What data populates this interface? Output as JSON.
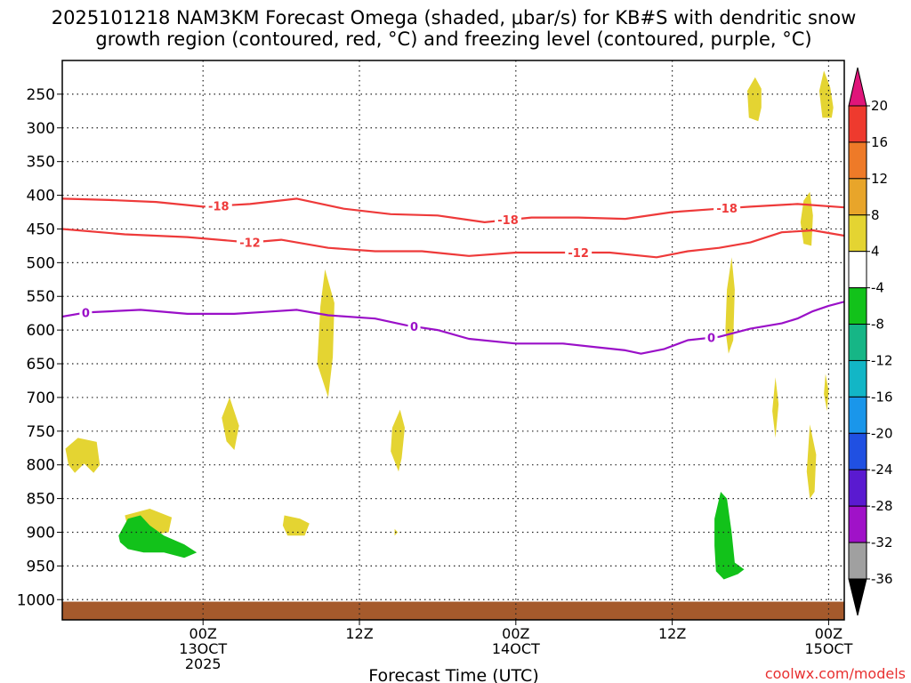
{
  "chart_data": {
    "type": "time-height cross section",
    "title_line1": "2025101218 NAM3KM Forecast Omega (shaded, μbar/s) for KB#S with dendritic snow",
    "title_line2": "growth region (contoured, red, °C) and freezing level (contoured, purple, °C)",
    "xlabel": "Forecast Time (UTC)",
    "credit": "coolwx.com/models",
    "x_axis": {
      "unit": "hours after 2025101218",
      "range": [
        -3,
        47
      ],
      "ticks": [
        {
          "hour": 6,
          "lines": [
            "00Z",
            "13OCT",
            "2025"
          ]
        },
        {
          "hour": 16,
          "lines": [
            "12Z"
          ]
        },
        {
          "hour": 26,
          "lines": [
            "00Z",
            "14OCT"
          ]
        },
        {
          "hour": 36,
          "lines": [
            "12Z"
          ]
        },
        {
          "hour": 46,
          "lines": [
            "00Z",
            "15OCT"
          ]
        }
      ]
    },
    "y_axis": {
      "unit": "hPa",
      "range": [
        200,
        1030
      ],
      "ticks": [
        250,
        300,
        350,
        400,
        450,
        500,
        550,
        600,
        650,
        700,
        750,
        800,
        850,
        900,
        950,
        1000
      ]
    },
    "colorbar": {
      "labels": [
        "20",
        "16",
        "12",
        "8",
        "4",
        "-4",
        "-8",
        "-12",
        "-16",
        "-20",
        "-24",
        "-28",
        "-32",
        "-36"
      ],
      "bins": [
        {
          "min": 20,
          "max": null,
          "color": "#e0157a"
        },
        {
          "min": 16,
          "max": 20,
          "color": "#ee3a2e"
        },
        {
          "min": 12,
          "max": 16,
          "color": "#ee7a28"
        },
        {
          "min": 8,
          "max": 12,
          "color": "#e8a52a"
        },
        {
          "min": 4,
          "max": 8,
          "color": "#e4d432"
        },
        {
          "min": -4,
          "max": 4,
          "color": "#ffffff"
        },
        {
          "min": -8,
          "max": -4,
          "color": "#12c21a"
        },
        {
          "min": -12,
          "max": -8,
          "color": "#16b686"
        },
        {
          "min": -16,
          "max": -12,
          "color": "#12b6c6"
        },
        {
          "min": -20,
          "max": -16,
          "color": "#1a96ea"
        },
        {
          "min": -24,
          "max": -20,
          "color": "#2050e2"
        },
        {
          "min": -28,
          "max": -24,
          "color": "#5a1ad0"
        },
        {
          "min": -32,
          "max": -28,
          "color": "#a012c8"
        },
        {
          "min": -36,
          "max": -32,
          "color": "#a0a0a0"
        },
        {
          "min": null,
          "max": -36,
          "color": "#000000"
        }
      ]
    },
    "contours": [
      {
        "name": "minus-18-isotherm",
        "label": "-18",
        "color": "#ee3a3a",
        "labels_at": [
          7,
          25.5,
          39.5
        ],
        "points": [
          [
            -3,
            405
          ],
          [
            0,
            407
          ],
          [
            3,
            410
          ],
          [
            6,
            417
          ],
          [
            9,
            413
          ],
          [
            12,
            405
          ],
          [
            15,
            420
          ],
          [
            18,
            428
          ],
          [
            21,
            430
          ],
          [
            24,
            440
          ],
          [
            27,
            433
          ],
          [
            30,
            433
          ],
          [
            33,
            435
          ],
          [
            36,
            425
          ],
          [
            39,
            420
          ],
          [
            41,
            417
          ],
          [
            44,
            413
          ],
          [
            47,
            418
          ]
        ]
      },
      {
        "name": "minus-12-isotherm",
        "label": "-12",
        "color": "#ee3a3a",
        "labels_at": [
          9,
          30
        ],
        "points": [
          [
            -3,
            450
          ],
          [
            1,
            458
          ],
          [
            5,
            462
          ],
          [
            9,
            470
          ],
          [
            11,
            466
          ],
          [
            14,
            478
          ],
          [
            17,
            483
          ],
          [
            20,
            483
          ],
          [
            23,
            490
          ],
          [
            26,
            485
          ],
          [
            29,
            485
          ],
          [
            32,
            485
          ],
          [
            35,
            492
          ],
          [
            37,
            483
          ],
          [
            39,
            478
          ],
          [
            41,
            470
          ],
          [
            43,
            455
          ],
          [
            45,
            452
          ],
          [
            47,
            460
          ]
        ]
      },
      {
        "name": "freezing-level",
        "label": "0",
        "color": "#9a10c8",
        "labels_at": [
          -1.5,
          19.5,
          38.5
        ],
        "points": [
          [
            -3,
            580
          ],
          [
            -1.5,
            574
          ],
          [
            2,
            570
          ],
          [
            5,
            576
          ],
          [
            8,
            576
          ],
          [
            10,
            573
          ],
          [
            12,
            570
          ],
          [
            14,
            578
          ],
          [
            17,
            583
          ],
          [
            19,
            593
          ],
          [
            21,
            600
          ],
          [
            23,
            613
          ],
          [
            26,
            620
          ],
          [
            29,
            620
          ],
          [
            31,
            625
          ],
          [
            33,
            630
          ],
          [
            34,
            635
          ],
          [
            35.5,
            628
          ],
          [
            37,
            615
          ],
          [
            39,
            610
          ],
          [
            41,
            598
          ],
          [
            43,
            590
          ],
          [
            44,
            583
          ],
          [
            45,
            572
          ],
          [
            46,
            564
          ],
          [
            47,
            558
          ]
        ]
      }
    ],
    "shaded_regions": [
      {
        "name": "rising-motion-3.8h-860hPa",
        "omega_range": "4 to 8",
        "color": "#e4d432",
        "points": [
          [
            -2.8,
            776
          ],
          [
            -2,
            760
          ],
          [
            -0.8,
            766
          ],
          [
            -0.6,
            800
          ],
          [
            -1,
            812
          ],
          [
            -1.6,
            798
          ],
          [
            -2.2,
            812
          ],
          [
            -2.6,
            800
          ]
        ]
      },
      {
        "name": "rising-motion-4.5h-880hPa",
        "omega_range": "4 to 8",
        "color": "#e4d432",
        "points": [
          [
            1,
            875
          ],
          [
            2.6,
            865
          ],
          [
            4,
            878
          ],
          [
            3.8,
            900
          ],
          [
            2.5,
            905
          ],
          [
            1.2,
            893
          ]
        ]
      },
      {
        "name": "rising-motion-5h-735hPa",
        "omega_range": "4 to 8",
        "color": "#e4d432",
        "points": [
          [
            7.7,
            700
          ],
          [
            8.3,
            742
          ],
          [
            8,
            778
          ],
          [
            7.5,
            765
          ],
          [
            7.2,
            730
          ]
        ]
      },
      {
        "name": "rising-motion-11.5h-885hPa",
        "omega_range": "4 to 8",
        "color": "#e4d432",
        "points": [
          [
            11.2,
            875
          ],
          [
            12.2,
            880
          ],
          [
            12.8,
            887
          ],
          [
            12.5,
            905
          ],
          [
            11.4,
            905
          ],
          [
            11.1,
            890
          ]
        ]
      },
      {
        "name": "rising-motion-11.8h-620hPa",
        "omega_range": "4 to 8",
        "color": "#e4d432",
        "points": [
          [
            13.8,
            510
          ],
          [
            14.4,
            560
          ],
          [
            14.3,
            640
          ],
          [
            14.0,
            700
          ],
          [
            13.3,
            650
          ],
          [
            13.5,
            565
          ]
        ]
      },
      {
        "name": "rising-motion-18h-770hPa",
        "omega_range": "4 to 8",
        "color": "#e4d432",
        "points": [
          [
            18.6,
            718
          ],
          [
            18.9,
            745
          ],
          [
            18.7,
            790
          ],
          [
            18.5,
            810
          ],
          [
            18.0,
            780
          ],
          [
            18.1,
            745
          ]
        ]
      },
      {
        "name": "rising-motion-18.3h-900hPa",
        "omega_range": "4 to 8",
        "color": "#e4d432",
        "points": [
          [
            18.25,
            895
          ],
          [
            18.45,
            900
          ],
          [
            18.25,
            905
          ]
        ]
      },
      {
        "name": "rising-motion-39h-255hPa",
        "omega_range": "4 to 8",
        "color": "#e4d432",
        "points": [
          [
            41.3,
            225
          ],
          [
            41.7,
            242
          ],
          [
            41.7,
            270
          ],
          [
            41.5,
            290
          ],
          [
            40.9,
            285
          ],
          [
            40.8,
            245
          ]
        ]
      },
      {
        "name": "rising-motion-46h-440hPa",
        "omega_range": "4 to 8",
        "color": "#e4d432",
        "points": [
          [
            44.8,
            395
          ],
          [
            45.0,
            430
          ],
          [
            44.9,
            475
          ],
          [
            44.4,
            472
          ],
          [
            44.2,
            440
          ],
          [
            44.4,
            408
          ]
        ]
      },
      {
        "name": "rising-motion-40h-540hPa",
        "omega_range": "4 to 8",
        "color": "#e4d432",
        "points": [
          [
            39.8,
            492
          ],
          [
            40.0,
            540
          ],
          [
            39.9,
            615
          ],
          [
            39.6,
            635
          ],
          [
            39.4,
            600
          ],
          [
            39.5,
            540
          ]
        ]
      },
      {
        "name": "rising-motion-43.7h-710hPa",
        "omega_range": "4 to 8",
        "color": "#e4d432",
        "points": [
          [
            42.6,
            670
          ],
          [
            42.8,
            710
          ],
          [
            42.6,
            760
          ],
          [
            42.4,
            720
          ]
        ]
      },
      {
        "name": "rising-motion-46.6h-810hPa",
        "omega_range": "4 to 8",
        "color": "#e4d432",
        "points": [
          [
            44.8,
            740
          ],
          [
            45.2,
            785
          ],
          [
            45.1,
            840
          ],
          [
            44.8,
            850
          ],
          [
            44.6,
            810
          ]
        ]
      },
      {
        "name": "rising-motion-48.5h-690hPa",
        "omega_range": "4 to 8",
        "color": "#e4d432",
        "points": [
          [
            45.8,
            665
          ],
          [
            46.0,
            690
          ],
          [
            45.9,
            720
          ],
          [
            45.7,
            695
          ]
        ]
      },
      {
        "name": "rising-motion-51h-255hPa",
        "omega_range": "4 to 8",
        "color": "#e4d432",
        "points": [
          [
            45.7,
            215
          ],
          [
            46.1,
            240
          ],
          [
            46.3,
            270
          ],
          [
            46.2,
            285
          ],
          [
            45.6,
            285
          ],
          [
            45.4,
            245
          ]
        ]
      },
      {
        "name": "sinking-motion-4h-905hPa",
        "omega_range": "-8 to -4",
        "color": "#12c21a",
        "points": [
          [
            0.6,
            905
          ],
          [
            1.2,
            880
          ],
          [
            2.0,
            875
          ],
          [
            2.6,
            890
          ],
          [
            3.5,
            905
          ],
          [
            4.8,
            918
          ],
          [
            5.6,
            930
          ],
          [
            4.8,
            938
          ],
          [
            3.5,
            930
          ],
          [
            2.2,
            930
          ],
          [
            1.2,
            925
          ],
          [
            0.7,
            915
          ]
        ]
      },
      {
        "name": "sinking-motion-40h-900hPa",
        "omega_range": "-8 to -4",
        "color": "#12c21a",
        "points": [
          [
            38.7,
            880
          ],
          [
            39.1,
            840
          ],
          [
            39.5,
            850
          ],
          [
            39.8,
            900
          ],
          [
            40.0,
            945
          ],
          [
            40.6,
            955
          ],
          [
            40.2,
            962
          ],
          [
            39.3,
            970
          ],
          [
            38.8,
            958
          ],
          [
            38.7,
            920
          ]
        ]
      }
    ],
    "terrain": {
      "name": "ground",
      "color": "#a55a2c",
      "top_hPa": 1003
    }
  }
}
